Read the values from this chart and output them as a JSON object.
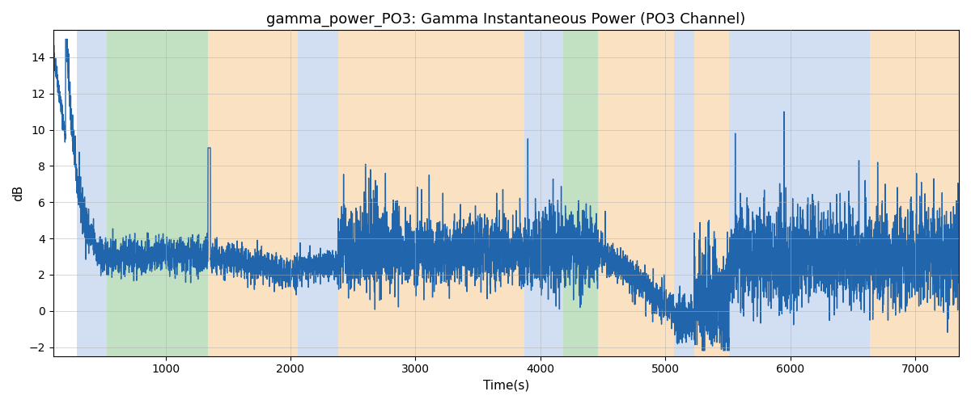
{
  "title": "gamma_power_PO3: Gamma Instantaneous Power (PO3 Channel)",
  "xlabel": "Time(s)",
  "ylabel": "dB",
  "xlim": [
    100,
    7350
  ],
  "ylim": [
    -2.5,
    15.5
  ],
  "yticks": [
    -2,
    0,
    2,
    4,
    6,
    8,
    10,
    12,
    14
  ],
  "xticks": [
    1000,
    2000,
    3000,
    4000,
    5000,
    6000,
    7000
  ],
  "line_color": "#2166ac",
  "line_width": 1.0,
  "background_color": "#ffffff",
  "grid_color": "#b0b0b0",
  "bands": [
    {
      "xmin": 290,
      "xmax": 530,
      "color": "#aec6e8",
      "alpha": 0.55
    },
    {
      "xmin": 530,
      "xmax": 1340,
      "color": "#90c990",
      "alpha": 0.55
    },
    {
      "xmin": 1340,
      "xmax": 2060,
      "color": "#f5c990",
      "alpha": 0.55
    },
    {
      "xmin": 2060,
      "xmax": 2380,
      "color": "#aec6e8",
      "alpha": 0.55
    },
    {
      "xmin": 2380,
      "xmax": 3870,
      "color": "#f5c990",
      "alpha": 0.55
    },
    {
      "xmin": 3870,
      "xmax": 4180,
      "color": "#aec6e8",
      "alpha": 0.55
    },
    {
      "xmin": 4180,
      "xmax": 4460,
      "color": "#90c990",
      "alpha": 0.55
    },
    {
      "xmin": 4460,
      "xmax": 5070,
      "color": "#f5c990",
      "alpha": 0.55
    },
    {
      "xmin": 5070,
      "xmax": 5230,
      "color": "#aec6e8",
      "alpha": 0.55
    },
    {
      "xmin": 5230,
      "xmax": 5510,
      "color": "#f5c990",
      "alpha": 0.55
    },
    {
      "xmin": 5510,
      "xmax": 6640,
      "color": "#aec6e8",
      "alpha": 0.55
    },
    {
      "xmin": 6640,
      "xmax": 7350,
      "color": "#f5c990",
      "alpha": 0.55
    }
  ],
  "seed": 42
}
